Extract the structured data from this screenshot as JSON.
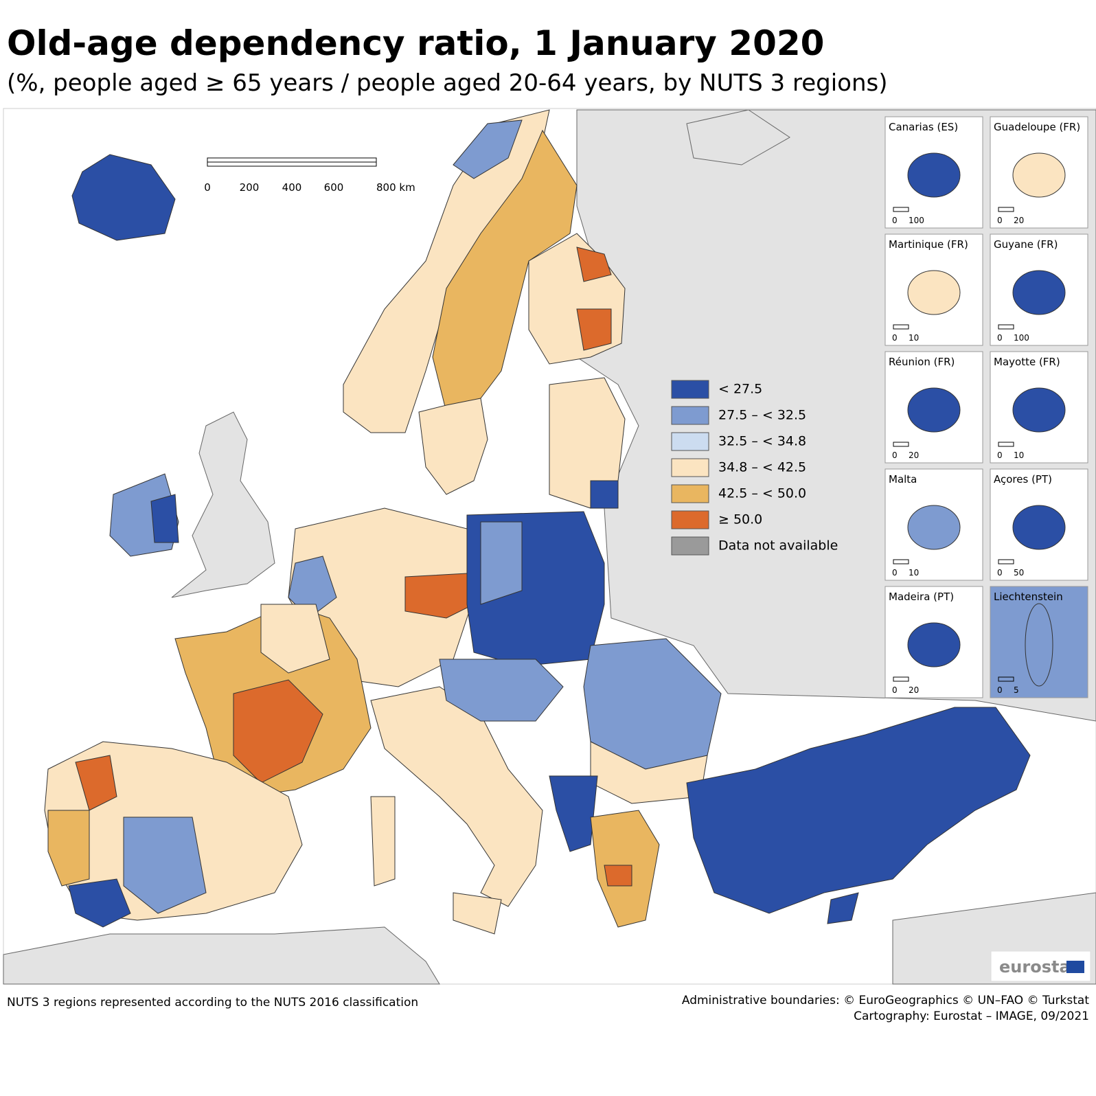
{
  "title": "Old-age dependency ratio, 1 January 2020",
  "subtitle": "(%, people aged ≥ 65 years / people aged 20-64 years, by NUTS 3 regions)",
  "legend": [
    {
      "label": "< 27.5",
      "color": "#2b4fa5"
    },
    {
      "label": "27.5 – < 32.5",
      "color": "#7e9bd0"
    },
    {
      "label": "32.5 – < 34.8",
      "color": "#ccdcf0"
    },
    {
      "label": "34.8 – < 42.5",
      "color": "#fbe4c1"
    },
    {
      "label": "42.5 – < 50.0",
      "color": "#e9b660"
    },
    {
      "label": "≥ 50.0",
      "color": "#dc6a2c"
    },
    {
      "label": "Data not available",
      "color": "#9a9a9a"
    }
  ],
  "scale_bar": [
    "0",
    "200",
    "400",
    "600",
    "800 km"
  ],
  "insets": [
    {
      "name": "Canarias (ES)",
      "scale": [
        "0",
        "100"
      ]
    },
    {
      "name": "Guadeloupe (FR)",
      "scale": [
        "0",
        "20"
      ]
    },
    {
      "name": "Martinique (FR)",
      "scale": [
        "0",
        "10"
      ]
    },
    {
      "name": "Guyane (FR)",
      "scale": [
        "0",
        "100"
      ]
    },
    {
      "name": "Réunion (FR)",
      "scale": [
        "0",
        "20"
      ]
    },
    {
      "name": "Mayotte (FR)",
      "scale": [
        "0",
        "10"
      ]
    },
    {
      "name": "Malta",
      "scale": [
        "0",
        "10"
      ]
    },
    {
      "name": "Açores (PT)",
      "scale": [
        "0",
        "50"
      ]
    },
    {
      "name": "Madeira (PT)",
      "scale": [
        "0",
        "20"
      ]
    },
    {
      "name": "Liechtenstein",
      "scale": [
        "0",
        "5"
      ]
    }
  ],
  "footer": {
    "left": "NUTS 3 regions represented according to the NUTS 2016 classification",
    "right": [
      "Administrative boundaries: © EuroGeographics © UN–FAO © Turkstat",
      "Cartography: Eurostat – IMAGE, 09/2021"
    ]
  },
  "logo": "eurostat"
}
